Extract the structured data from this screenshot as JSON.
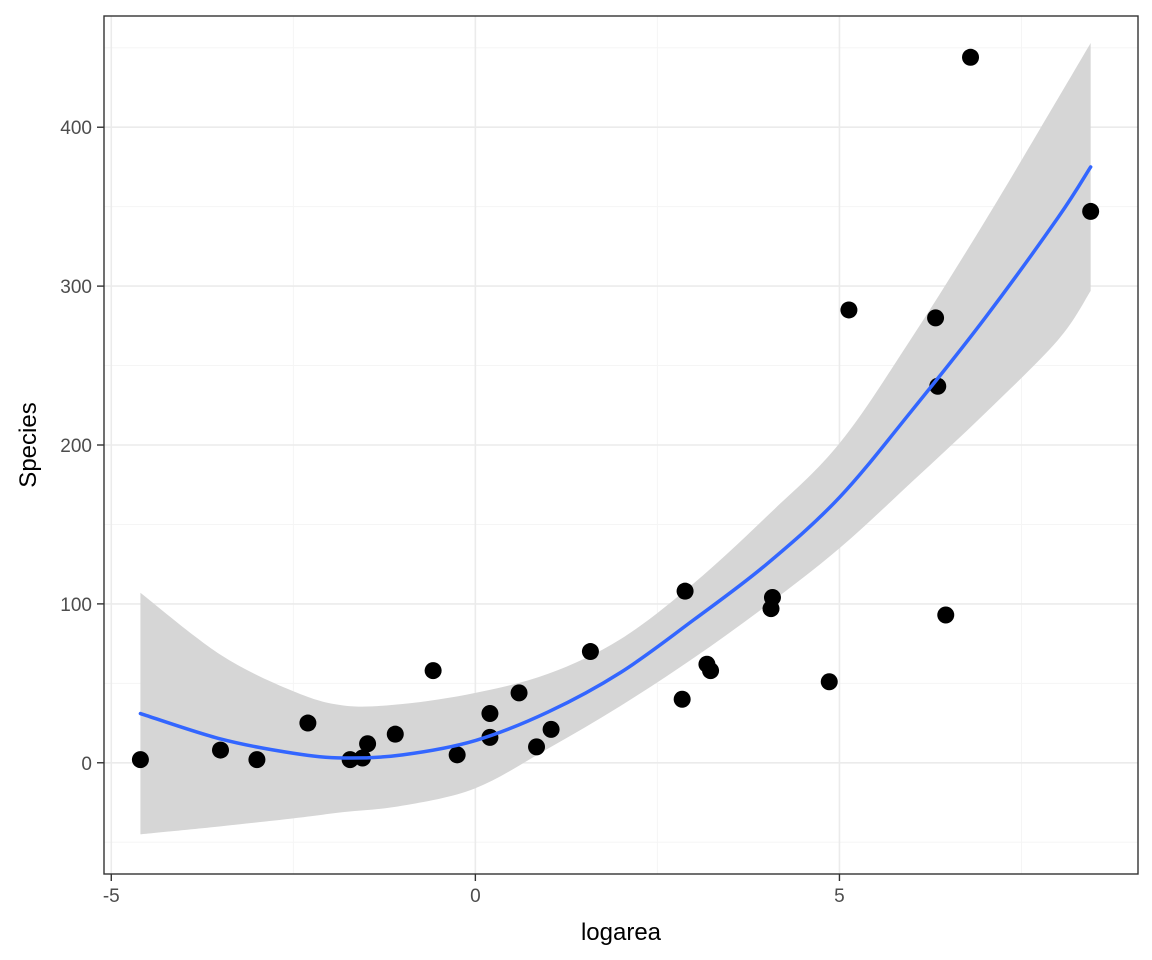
{
  "chart_data": {
    "type": "scatter",
    "title": "",
    "xlabel": "logarea",
    "ylabel": "Species",
    "xlim": [
      -5.1,
      9.1
    ],
    "ylim": [
      -70,
      470
    ],
    "x_ticks": [
      -5,
      0,
      5
    ],
    "x_tick_labels": [
      "-5",
      "0",
      "5"
    ],
    "y_ticks": [
      0,
      100,
      200,
      300,
      400
    ],
    "y_tick_labels": [
      "0",
      "100",
      "200",
      "300",
      "400"
    ],
    "grid": true,
    "legend": "none",
    "points": [
      {
        "x": -4.6,
        "y": 2
      },
      {
        "x": -3.5,
        "y": 8
      },
      {
        "x": -3.0,
        "y": 2
      },
      {
        "x": -2.3,
        "y": 25
      },
      {
        "x": -1.72,
        "y": 2
      },
      {
        "x": -1.55,
        "y": 3
      },
      {
        "x": -1.48,
        "y": 12
      },
      {
        "x": -1.1,
        "y": 18
      },
      {
        "x": -0.58,
        "y": 58
      },
      {
        "x": -0.25,
        "y": 5
      },
      {
        "x": 0.2,
        "y": 31
      },
      {
        "x": 0.2,
        "y": 16
      },
      {
        "x": 0.6,
        "y": 44
      },
      {
        "x": 0.84,
        "y": 10
      },
      {
        "x": 1.04,
        "y": 21
      },
      {
        "x": 1.58,
        "y": 70
      },
      {
        "x": 2.84,
        "y": 40
      },
      {
        "x": 2.88,
        "y": 108
      },
      {
        "x": 3.18,
        "y": 62
      },
      {
        "x": 3.23,
        "y": 58
      },
      {
        "x": 4.06,
        "y": 97
      },
      {
        "x": 4.08,
        "y": 104
      },
      {
        "x": 4.86,
        "y": 51
      },
      {
        "x": 5.13,
        "y": 285
      },
      {
        "x": 6.32,
        "y": 280
      },
      {
        "x": 6.35,
        "y": 237
      },
      {
        "x": 6.46,
        "y": 93
      },
      {
        "x": 6.8,
        "y": 444
      },
      {
        "x": 8.45,
        "y": 347
      }
    ],
    "smooth": {
      "method": "quadratic",
      "x": [
        -4.6,
        -3.5,
        -2.5,
        -1.8,
        -1.0,
        0.0,
        1.0,
        2.0,
        3.0,
        4.0,
        5.0,
        6.0,
        7.0,
        8.0,
        8.45
      ],
      "fit": [
        31,
        15,
        6,
        3,
        5,
        14,
        32,
        57,
        90,
        125,
        167,
        222,
        280,
        343,
        375
      ],
      "lower": [
        -45,
        -40,
        -35,
        -31,
        -27,
        -16,
        9,
        36,
        66,
        99,
        135,
        177,
        220,
        266,
        297
      ],
      "upper": [
        107,
        68,
        45,
        36,
        37,
        44,
        56,
        78,
        113,
        155,
        201,
        268,
        341,
        418,
        453
      ],
      "line_color": "#3366ff",
      "ribbon_color": "#d6d6d6"
    },
    "point_color": "#000000",
    "panel_border": "#333333",
    "grid_major_color": "#ebebeb",
    "grid_minor_color": "#f5f5f5"
  }
}
